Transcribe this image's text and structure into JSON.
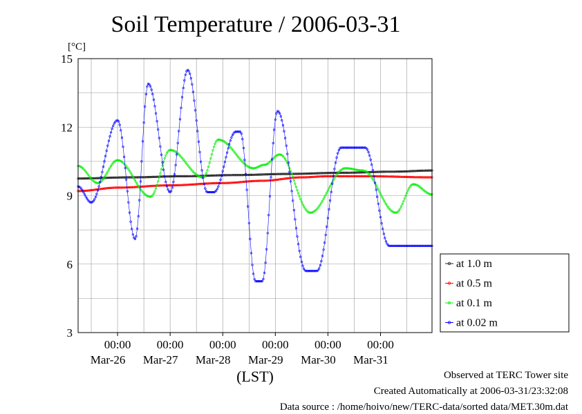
{
  "chart_data": {
    "type": "line",
    "title": "Soil Temperature / 2006-03-31",
    "ylabel": "[°C]",
    "xlabel": "(LST)",
    "ylim": [
      3,
      15
    ],
    "yticks": [
      3,
      6,
      9,
      12,
      15
    ],
    "xlim": [
      "2006-03-25 06:00",
      "2006-03-31 23:30"
    ],
    "x_tick_time": "00:00",
    "x_ticks": [
      {
        "time": "00:00",
        "date": "Mar-26",
        "x": "2006-03-26 00:00"
      },
      {
        "time": "00:00",
        "date": "Mar-27",
        "x": "2006-03-27 00:00"
      },
      {
        "time": "00:00",
        "date": "Mar-28",
        "x": "2006-03-28 00:00"
      },
      {
        "time": "00:00",
        "date": "Mar-29",
        "x": "2006-03-29 00:00"
      },
      {
        "time": "00:00",
        "date": "Mar-30",
        "x": "2006-03-30 00:00"
      },
      {
        "time": "00:00",
        "date": "Mar-31",
        "x": "2006-03-31 00:00"
      }
    ],
    "grid": true,
    "legend_position": "right",
    "series": [
      {
        "name": "at 1.0 m",
        "color": "#222222",
        "x": [
          "2006-03-25 06:00",
          "2006-03-26 06:00",
          "2006-03-27 06:00",
          "2006-03-28 06:00",
          "2006-03-29 06:00",
          "2006-03-30 06:00",
          "2006-03-31 06:00",
          "2006-03-31 23:30"
        ],
        "y": [
          9.75,
          9.8,
          9.85,
          9.9,
          9.95,
          10.0,
          10.05,
          10.1
        ]
      },
      {
        "name": "at 0.5 m",
        "color": "#ff0000",
        "x": [
          "2006-03-25 06:00",
          "2006-03-26 00:00",
          "2006-03-27 00:00",
          "2006-03-28 00:00",
          "2006-03-28 18:00",
          "2006-03-29 12:00",
          "2006-03-30 00:00",
          "2006-03-30 18:00",
          "2006-03-31 23:30"
        ],
        "y": [
          9.2,
          9.35,
          9.45,
          9.55,
          9.65,
          9.8,
          9.85,
          9.85,
          9.8
        ]
      },
      {
        "name": "at 0.1 m",
        "color": "#00ee00",
        "x": [
          "2006-03-25 06:00",
          "2006-03-25 15:00",
          "2006-03-26 00:00",
          "2006-03-26 15:00",
          "2006-03-27 00:00",
          "2006-03-27 15:00",
          "2006-03-27 22:00",
          "2006-03-28 14:00",
          "2006-03-28 19:00",
          "2006-03-29 02:00",
          "2006-03-29 16:00",
          "2006-03-30 08:00",
          "2006-03-30 16:00",
          "2006-03-31 07:00",
          "2006-03-31 15:00",
          "2006-03-31 23:30"
        ],
        "y": [
          10.3,
          9.55,
          10.55,
          8.95,
          11.0,
          9.8,
          11.45,
          10.2,
          10.35,
          10.8,
          8.25,
          10.2,
          10.1,
          8.25,
          9.5,
          9.05
        ]
      },
      {
        "name": "at 0.02 m",
        "color": "#0000ff",
        "x": [
          "2006-03-25 06:00",
          "2006-03-25 12:00",
          "2006-03-26 00:00",
          "2006-03-26 08:00",
          "2006-03-26 14:00",
          "2006-03-27 00:00",
          "2006-03-27 08:00",
          "2006-03-27 17:00",
          "2006-03-27 20:00",
          "2006-03-28 06:00",
          "2006-03-28 08:00",
          "2006-03-28 15:00",
          "2006-03-28 18:00",
          "2006-03-29 01:00",
          "2006-03-29 14:00",
          "2006-03-29 19:00",
          "2006-03-30 06:00",
          "2006-03-30 12:00",
          "2006-03-30 17:00",
          "2006-03-31 04:00",
          "2006-03-31 13:00",
          "2006-03-31 23:30"
        ],
        "y": [
          9.4,
          8.7,
          12.3,
          7.1,
          13.9,
          9.15,
          14.5,
          9.15,
          9.15,
          11.8,
          11.8,
          5.25,
          5.25,
          12.7,
          5.7,
          5.7,
          11.1,
          11.1,
          11.1,
          6.8,
          6.8,
          6.8
        ]
      }
    ]
  },
  "footer": {
    "observed": "Observed at TERC Tower site",
    "created": "Created Automatically at 2006-03-31/23:32:08",
    "source": "Data source : /home/hoivo/new/TERC-data/sorted  data/MET.30m.dat"
  }
}
